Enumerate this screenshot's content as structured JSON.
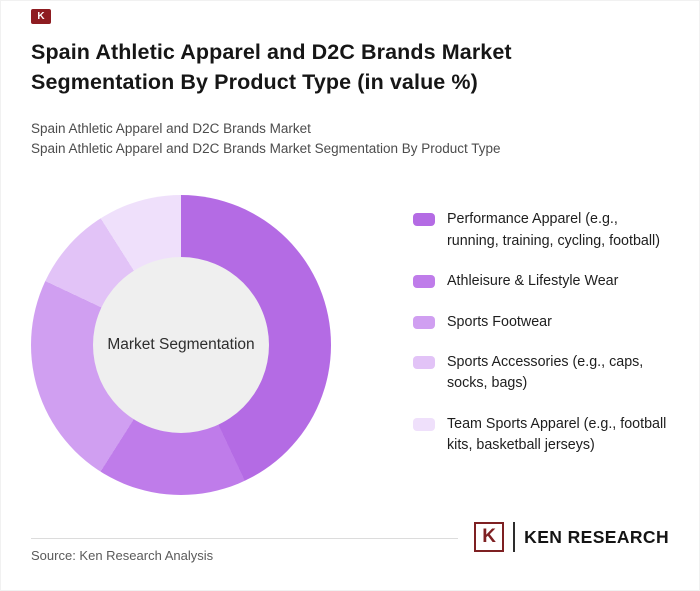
{
  "header": {
    "title_line1": "Spain Athletic Apparel and D2C Brands Market",
    "title_line2": "Segmentation By Product Type (in value %)",
    "subtitle_line1": "Spain Athletic Apparel and D2C Brands Market",
    "subtitle_line2": "Spain Athletic Apparel and D2C Brands Market Segmentation By Product Type"
  },
  "chart_data": {
    "type": "pie",
    "variant": "donut",
    "title": "Spain Athletic Apparel and D2C Brands Market Segmentation By Product Type (in value %)",
    "center_label": "Market Segmentation",
    "categories": [
      "Performance Apparel (e.g., running, training, cycling, football)",
      "Athleisure & Lifestyle Wear",
      "Sports Footwear",
      "Sports Accessories (e.g., caps, socks, bags)",
      "Team Sports Apparel (e.g., football kits, basketball jerseys)"
    ],
    "values": [
      43,
      16,
      23,
      9,
      9
    ],
    "colors": [
      "#b46be4",
      "#bf7cea",
      "#d09ff1",
      "#e2c3f7",
      "#efe0fb"
    ],
    "start_angle_deg": 0,
    "direction": "clockwise",
    "legend_position": "right",
    "hole_fill": "#efefef"
  },
  "footer": {
    "source": "Source: Ken Research Analysis",
    "logo_k": "K",
    "logo_text": "KEN RESEARCH"
  }
}
